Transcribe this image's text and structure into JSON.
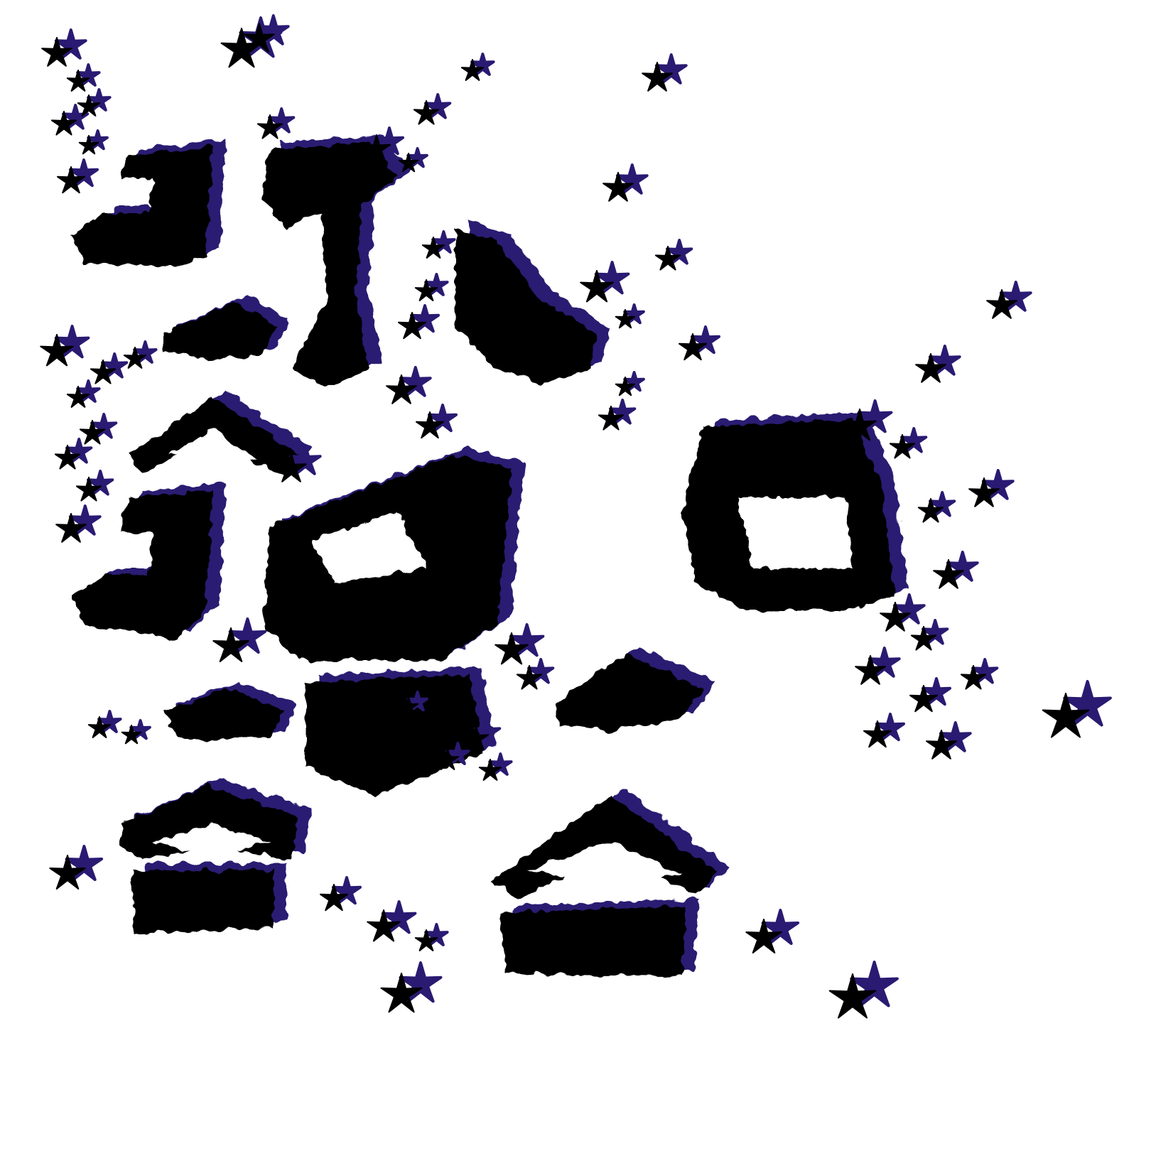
{
  "artwork": {
    "subject": "abstract-brush-marks-with-stars",
    "colors": {
      "background": "#ffffff",
      "ink": "#000000",
      "shadow": "#2a1a72"
    },
    "icons": [
      "star-icon"
    ]
  }
}
